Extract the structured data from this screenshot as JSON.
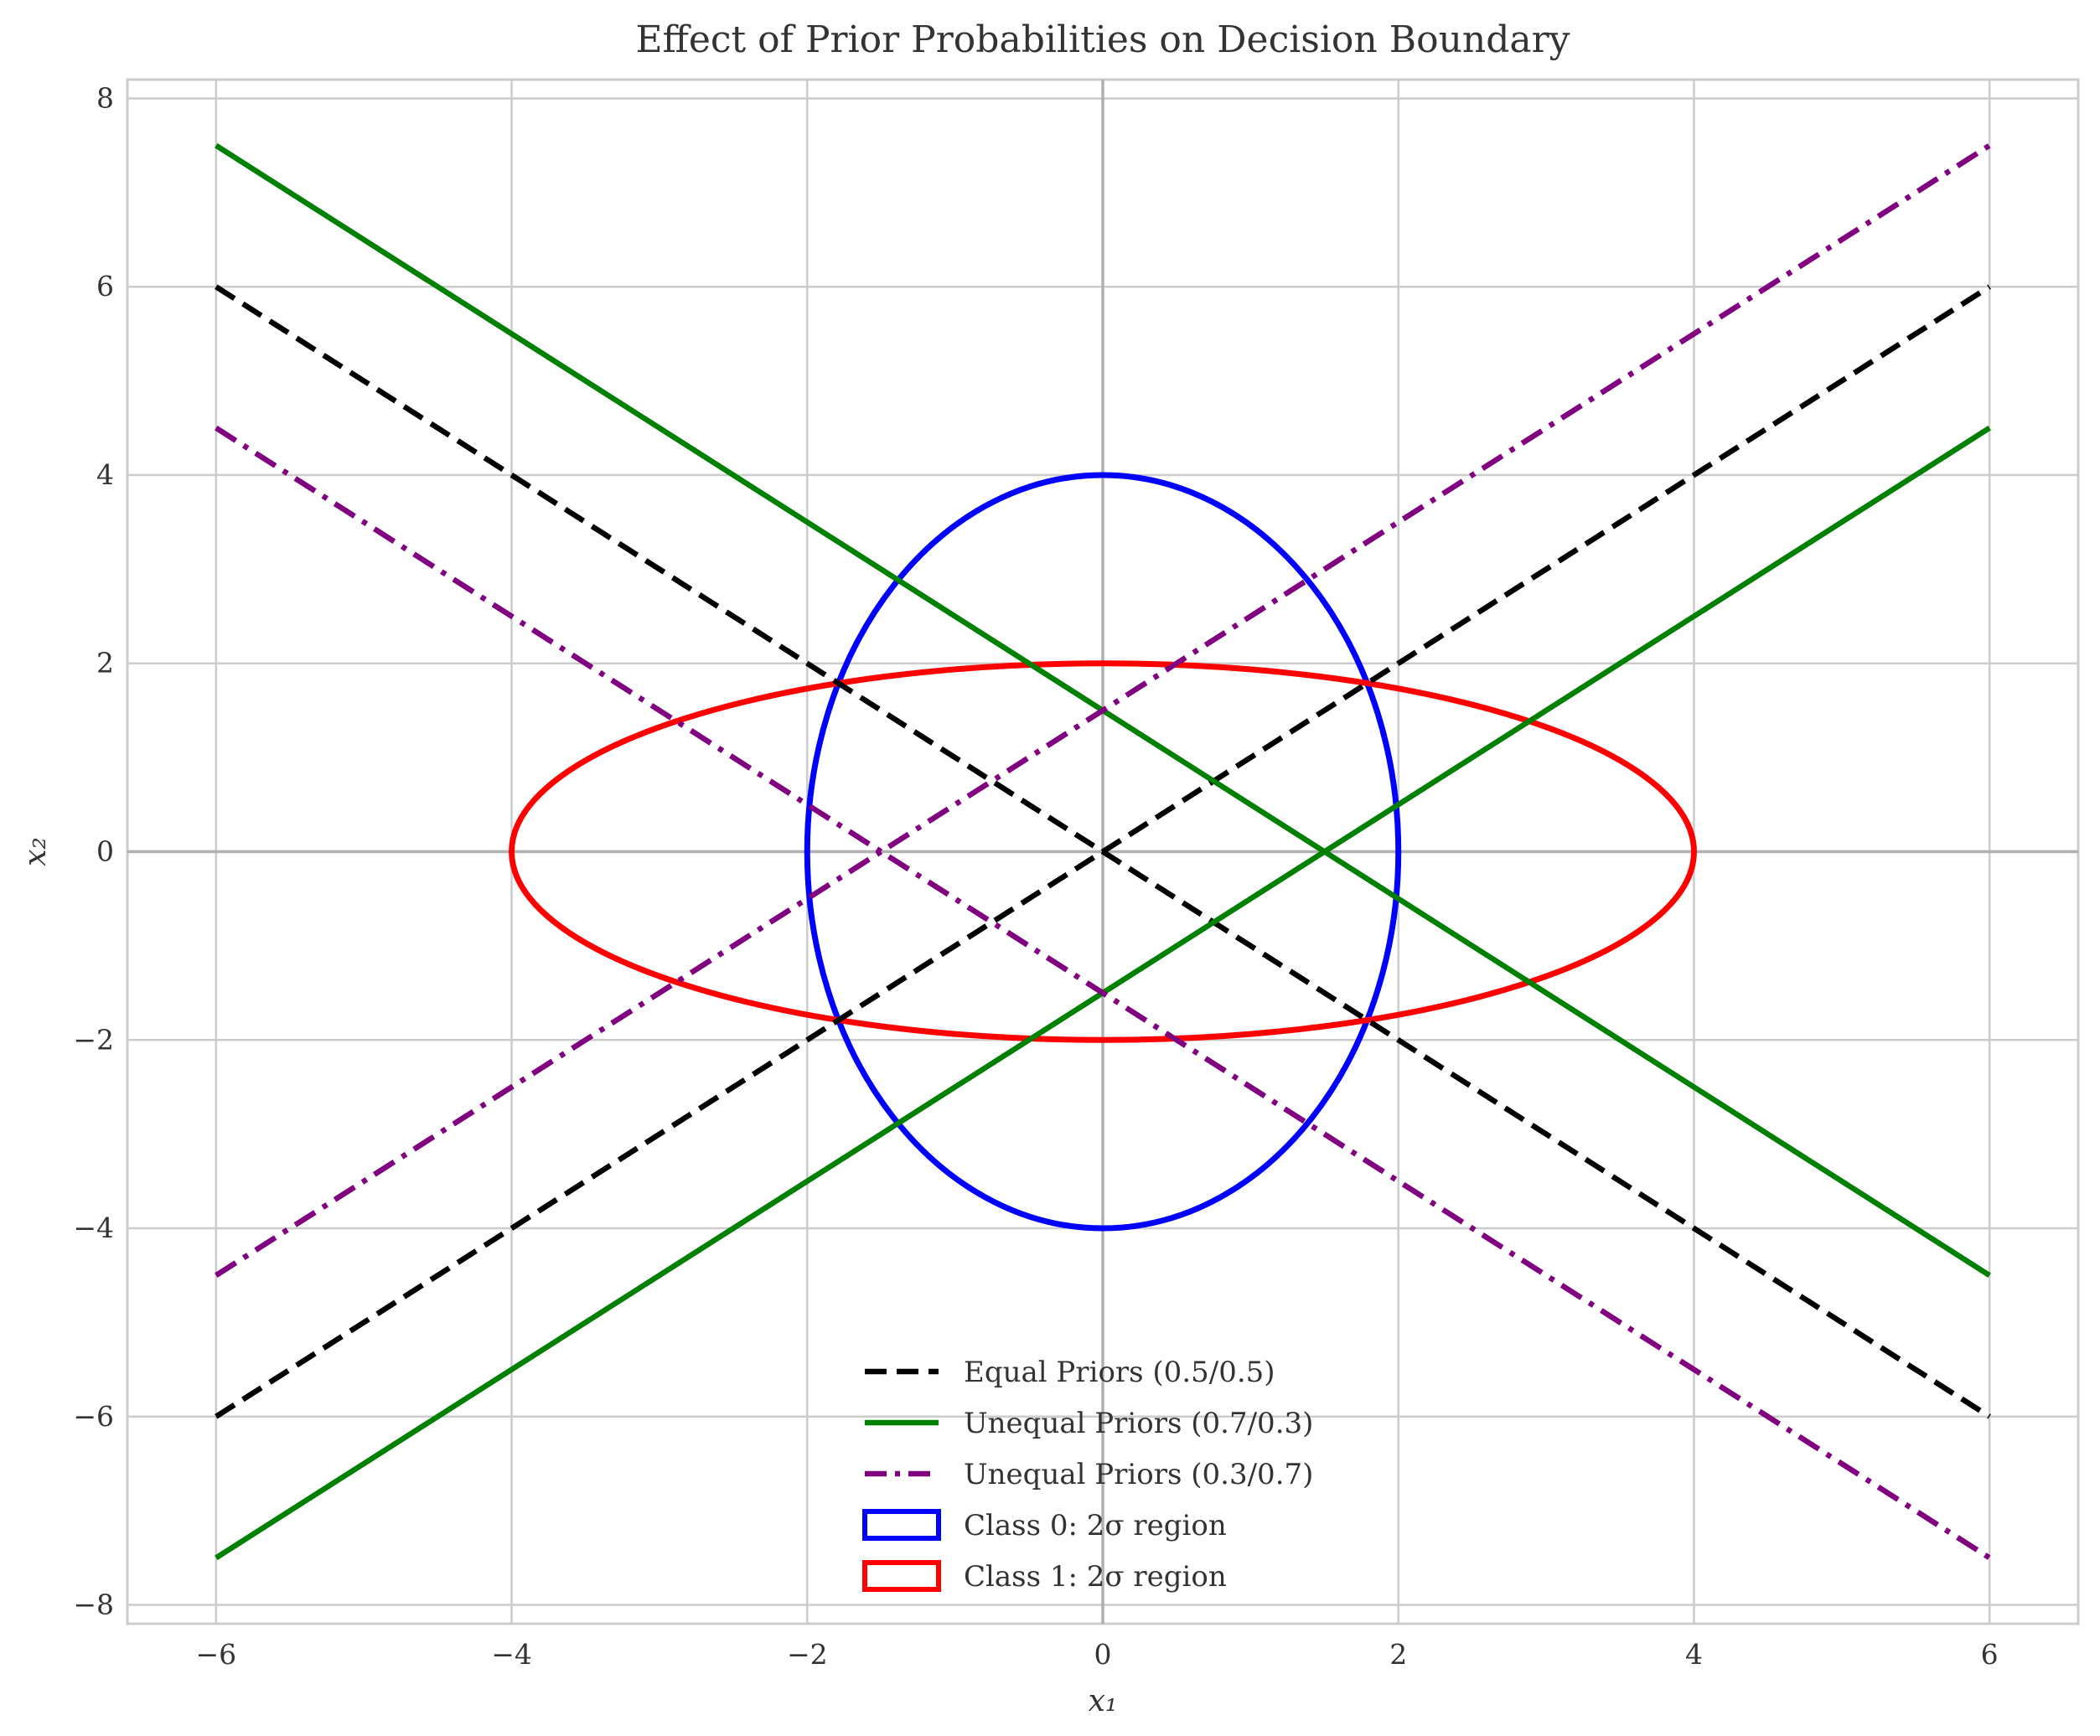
{
  "chart_data": {
    "type": "line",
    "title": "Effect of Prior Probabilities on Decision Boundary",
    "xlabel": "x₁",
    "ylabel": "x₂",
    "xlim": [
      -6.6,
      6.6
    ],
    "ylim": [
      -8.2,
      8.2
    ],
    "xticks": [
      -6,
      -4,
      -2,
      0,
      2,
      4,
      6
    ],
    "xtick_labels": [
      "−6",
      "−4",
      "−2",
      "0",
      "2",
      "4",
      "6"
    ],
    "yticks": [
      -8,
      -6,
      -4,
      -2,
      0,
      2,
      4,
      6,
      8
    ],
    "ytick_labels": [
      "−8",
      "−6",
      "−4",
      "−2",
      "0",
      "2",
      "4",
      "6",
      "8"
    ],
    "grid": true,
    "legend_position": "bottom-center",
    "series": [
      {
        "name": "Equal Priors (0.5/0.5)",
        "color": "#000000",
        "style": "dashed",
        "segments": [
          {
            "x": [
              -6,
              6
            ],
            "y": [
              6,
              -6
            ]
          },
          {
            "x": [
              -6,
              6
            ],
            "y": [
              -6,
              6
            ]
          }
        ]
      },
      {
        "name": "Unequal Priors (0.7/0.3)",
        "color": "#008000",
        "style": "solid",
        "segments": [
          {
            "x": [
              -6,
              6
            ],
            "y": [
              7.5,
              -4.5
            ]
          },
          {
            "x": [
              -6,
              6
            ],
            "y": [
              -7.5,
              4.5
            ]
          }
        ]
      },
      {
        "name": "Unequal Priors (0.3/0.7)",
        "color": "#800080",
        "style": "dashdot",
        "segments": [
          {
            "x": [
              -6,
              6
            ],
            "y": [
              4.5,
              -7.5
            ]
          },
          {
            "x": [
              -6,
              6
            ],
            "y": [
              -4.5,
              7.5
            ]
          }
        ]
      }
    ],
    "regions": [
      {
        "name": "Class 0: 2σ region",
        "color": "#0000ff",
        "center": [
          0,
          0
        ],
        "semi_x": 2,
        "semi_y": 4
      },
      {
        "name": "Class 1: 2σ region",
        "color": "#ff0000",
        "center": [
          0,
          0
        ],
        "semi_x": 4,
        "semi_y": 2
      }
    ]
  }
}
